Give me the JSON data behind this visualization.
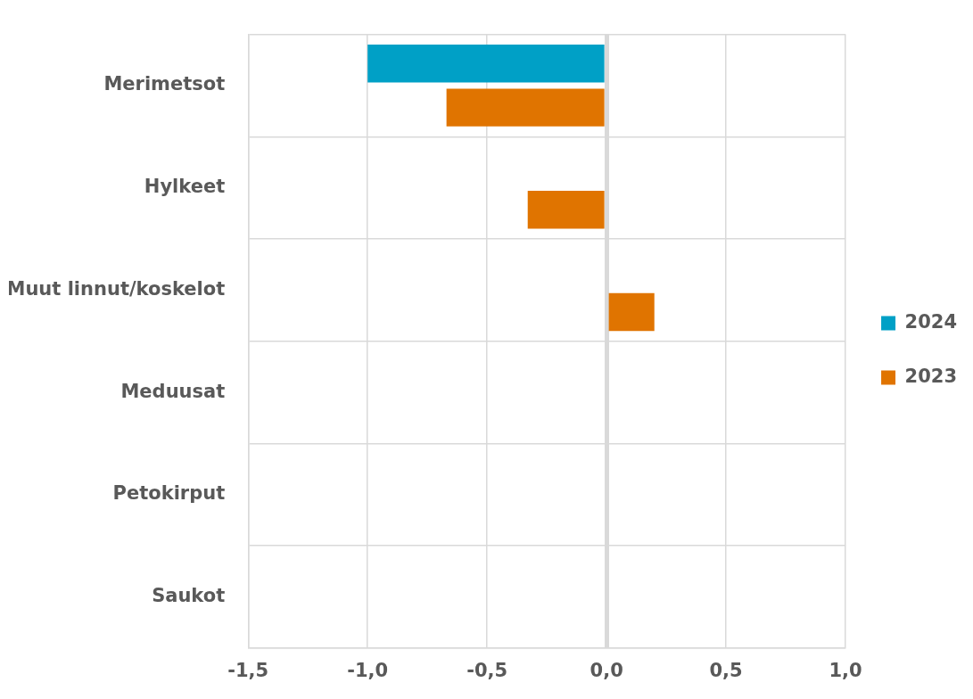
{
  "chart_data": {
    "type": "bar",
    "orientation": "horizontal",
    "categories": [
      "Merimetsot",
      "Hylkeet",
      "Muut linnut/koskelot",
      "Meduusat",
      "Petokirput",
      "Saukot"
    ],
    "series": [
      {
        "name": "2024",
        "color": "#00a0c6",
        "values": [
          -1.0,
          0,
          0,
          0,
          0,
          0
        ]
      },
      {
        "name": "2023",
        "color": "#e07400",
        "values": [
          -0.67,
          -0.33,
          0.2,
          0,
          0,
          0
        ]
      }
    ],
    "xlim": [
      -1.5,
      1.0
    ],
    "xticks": [
      {
        "value": -1.5,
        "label": "-1,5"
      },
      {
        "value": -1.0,
        "label": "-1,0"
      },
      {
        "value": -0.5,
        "label": "-0,5"
      },
      {
        "value": 0,
        "label": "0,0"
      },
      {
        "value": 0.5,
        "label": "0,5"
      },
      {
        "value": 1.0,
        "label": "1,0"
      }
    ],
    "grid": true,
    "legend": "right"
  }
}
